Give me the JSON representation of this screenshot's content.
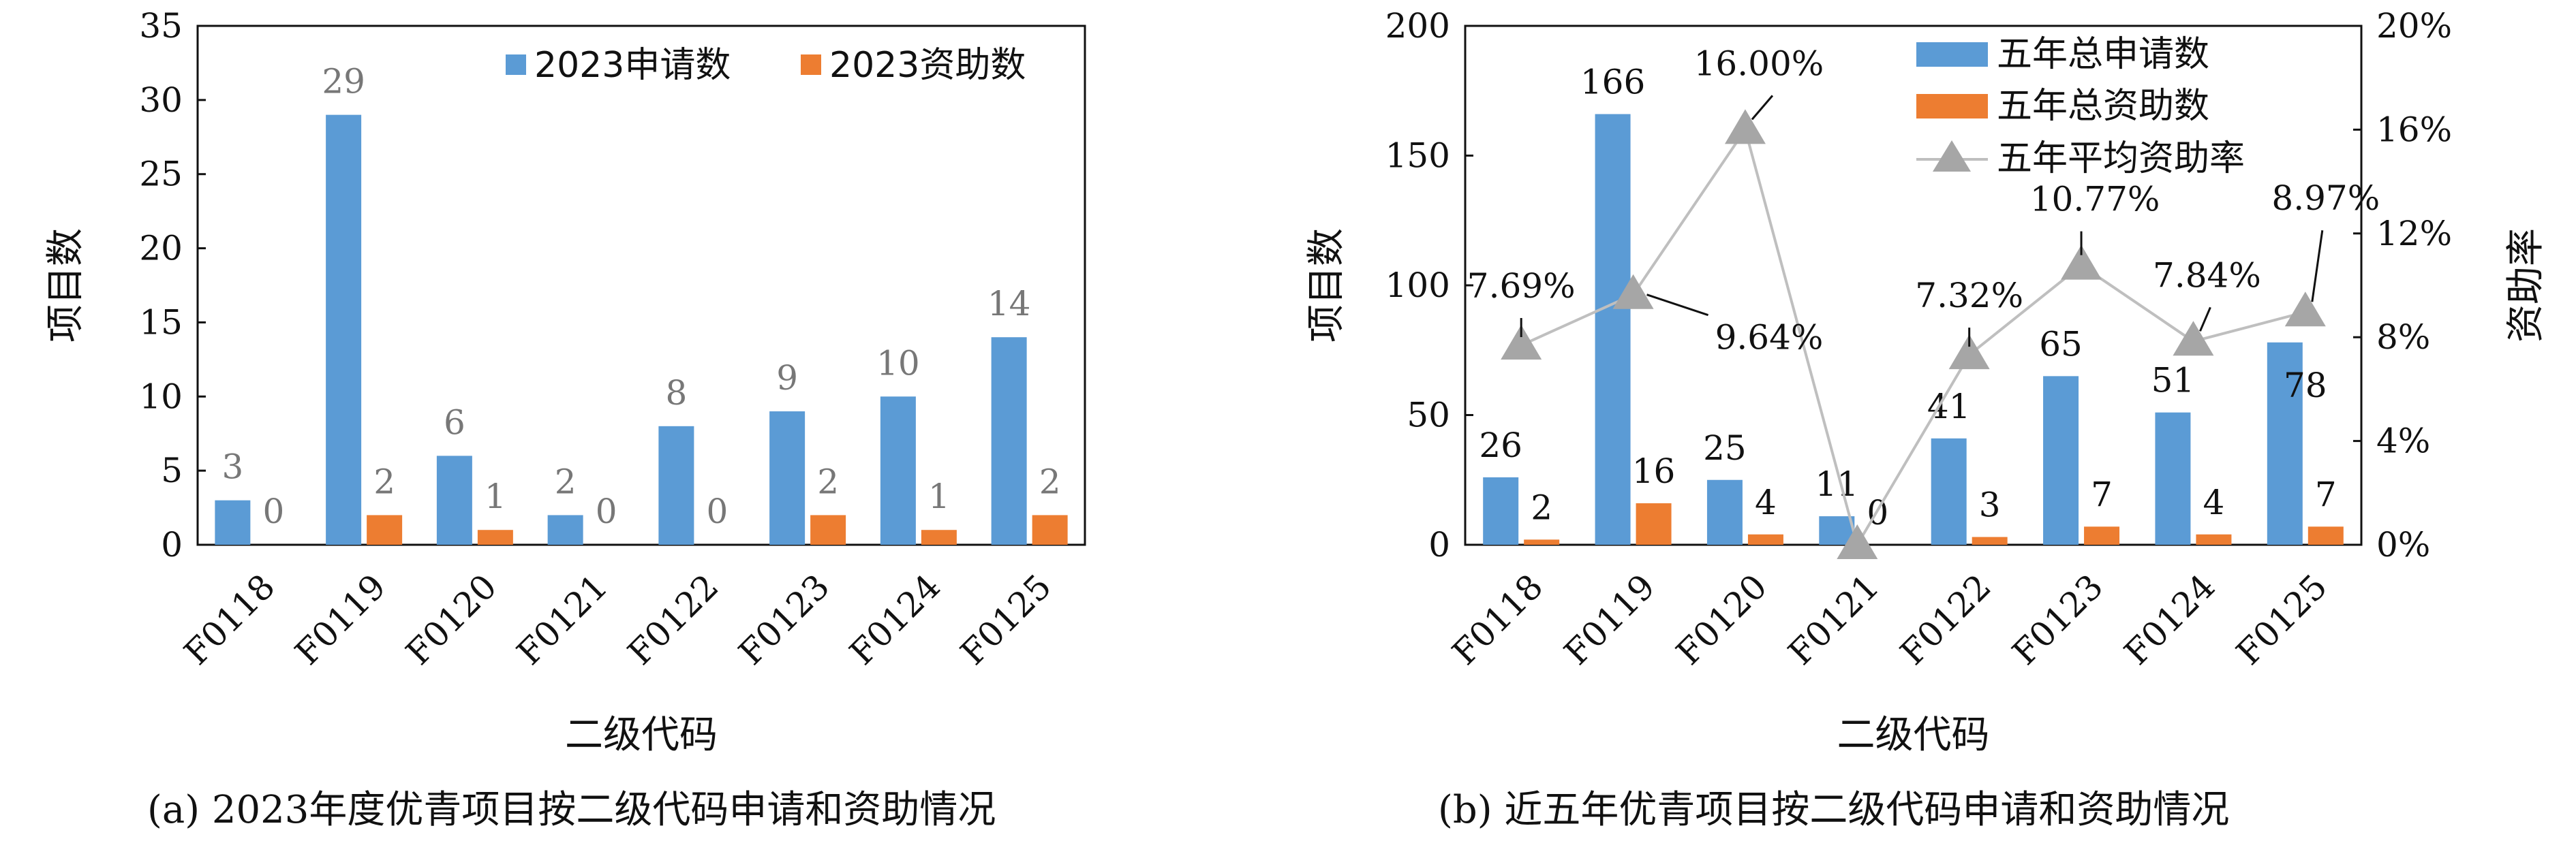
{
  "colors": {
    "applications": "#5B9BD5",
    "funded": "#ED7D31",
    "rate_line": "#BFBFBF",
    "rate_marker": "#A6A6A6"
  },
  "chart_data": [
    {
      "type": "bar",
      "caption": "(a) 2023年度优青项目按二级代码申请和资助情况",
      "xlabel": "二级代码",
      "ylabel": "项目数",
      "ylim": [
        0,
        35
      ],
      "yticks": [
        0,
        5,
        10,
        15,
        20,
        25,
        30,
        35
      ],
      "categories": [
        "F0118",
        "F0119",
        "F0120",
        "F0121",
        "F0122",
        "F0123",
        "F0124",
        "F0125"
      ],
      "series": [
        {
          "name": "2023申请数",
          "values": [
            3,
            29,
            6,
            2,
            8,
            9,
            10,
            14
          ]
        },
        {
          "name": "2023资助数",
          "values": [
            0,
            2,
            1,
            0,
            0,
            2,
            1,
            2
          ]
        }
      ],
      "legend_position": "top-right",
      "grid": false
    },
    {
      "type": "bar+line",
      "caption": "(b) 近五年优青项目按二级代码申请和资助情况",
      "xlabel": "二级代码",
      "ylabel": "项目数",
      "y2label": "资助率",
      "ylim": [
        0,
        200
      ],
      "yticks": [
        0,
        50,
        100,
        150,
        200
      ],
      "y2lim": [
        0,
        20
      ],
      "y2ticks": [
        "0%",
        "4%",
        "8%",
        "12%",
        "16%",
        "20%"
      ],
      "categories": [
        "F0118",
        "F0119",
        "F0120",
        "F0121",
        "F0122",
        "F0123",
        "F0124",
        "F0125"
      ],
      "series": [
        {
          "name": "五年总申请数",
          "values": [
            26,
            166,
            25,
            11,
            41,
            65,
            51,
            78
          ]
        },
        {
          "name": "五年总资助数",
          "values": [
            2,
            16,
            4,
            0,
            3,
            7,
            4,
            7
          ]
        },
        {
          "name": "五年平均资助率",
          "values": [
            7.69,
            9.64,
            16.0,
            0.0,
            7.32,
            10.77,
            7.84,
            8.97
          ],
          "labels": [
            "7.69%",
            "9.64%",
            "16.00%",
            "",
            "7.32%",
            "10.77%",
            "7.84%",
            "8.97%"
          ]
        }
      ],
      "legend_position": "top-right",
      "grid": false
    }
  ]
}
